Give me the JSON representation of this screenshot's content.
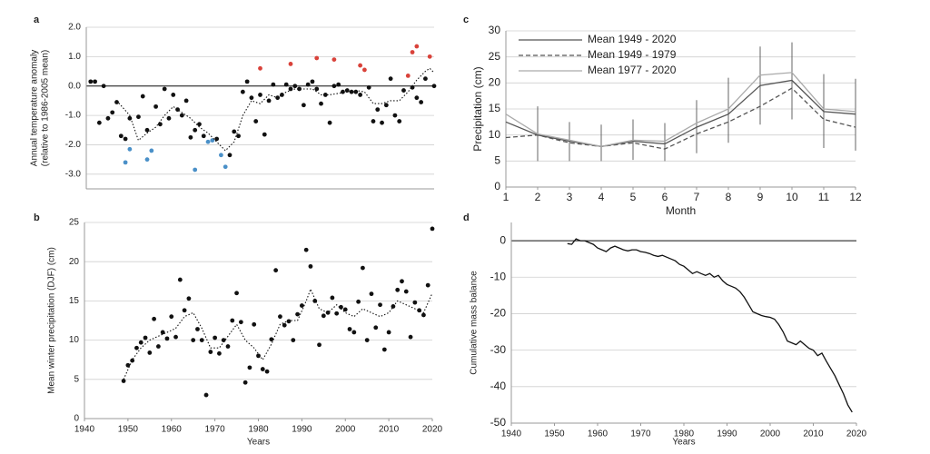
{
  "chart_data": [
    {
      "type": "scatter",
      "label": "a",
      "ylabel": [
        "Annual temperature anomaly",
        "(relative to 1986-2005 mean)"
      ],
      "xlim": [
        1940,
        2020
      ],
      "ylim": [
        -3.5,
        2.0
      ],
      "yticks": [
        {
          "value": 2,
          "label": "2.0"
        },
        {
          "value": 1,
          "label": "1.0"
        },
        {
          "value": 0,
          "label": "0.0"
        },
        {
          "value": -1,
          "label": "-1.0"
        },
        {
          "value": -2,
          "label": "-2.0"
        },
        {
          "value": -3,
          "label": "-3.0"
        }
      ],
      "grid": true,
      "zero_line": true,
      "series": [
        {
          "color": "#111111",
          "style": "dots",
          "x": [
            1941,
            1942,
            1943,
            1944,
            1945,
            1946,
            1947,
            1948,
            1949,
            1950,
            1952,
            1953,
            1954,
            1956,
            1957,
            1958,
            1959,
            1960,
            1961,
            1962,
            1963,
            1964,
            1965,
            1966,
            1967,
            1970,
            1973,
            1974,
            1975,
            1976,
            1977,
            1978,
            1979,
            1980,
            1981,
            1982,
            1983,
            1984,
            1985,
            1986,
            1987,
            1988,
            1989,
            1990,
            1991,
            1992,
            1993,
            1994,
            1995,
            1996,
            1997,
            1998,
            1999,
            2000,
            2001,
            2002,
            2003,
            2005,
            2006,
            2007,
            2008,
            2009,
            2010,
            2011,
            2012,
            2013,
            2015,
            2016,
            2017,
            2018,
            2020
          ],
          "values": [
            0.15,
            0.15,
            -1.25,
            0.0,
            -1.1,
            -0.9,
            -0.55,
            -1.7,
            -1.8,
            -1.1,
            -1.05,
            -0.35,
            -1.5,
            -0.7,
            -1.3,
            -0.1,
            -1.1,
            -0.3,
            -0.8,
            -1.0,
            -0.5,
            -1.75,
            -1.5,
            -1.3,
            -1.7,
            -1.8,
            -2.35,
            -1.55,
            -1.7,
            -0.2,
            0.15,
            -0.4,
            -1.2,
            -0.3,
            -1.65,
            -0.5,
            0.05,
            -0.4,
            -0.3,
            0.05,
            -0.1,
            0.0,
            -0.1,
            -0.65,
            0.05,
            0.15,
            -0.1,
            -0.6,
            -0.3,
            -1.25,
            0.0,
            0.05,
            -0.2,
            -0.15,
            -0.2,
            -0.2,
            -0.3,
            -0.05,
            -1.2,
            -0.8,
            -1.25,
            -0.65,
            0.25,
            -1.0,
            -1.2,
            -0.15,
            -0.05,
            -0.4,
            -0.55,
            0.25,
            0.0
          ]
        },
        {
          "color": "#4a90c8",
          "style": "dots",
          "x": [
            1949,
            1950,
            1954,
            1955,
            1965,
            1968,
            1969,
            1971,
            1972
          ],
          "values": [
            -2.6,
            -2.15,
            -2.5,
            -2.2,
            -2.85,
            -1.9,
            -1.85,
            -2.35,
            -2.75
          ]
        },
        {
          "color": "#d9423a",
          "style": "dots",
          "x": [
            1980,
            1987,
            1993,
            1997,
            2003,
            2004,
            2014,
            2015,
            2016,
            2019
          ],
          "values": [
            0.6,
            0.75,
            0.95,
            0.9,
            0.7,
            0.55,
            0.35,
            1.15,
            1.35,
            1.0
          ]
        },
        {
          "color": "#111111",
          "style": "dotted",
          "x": [
            1947,
            1950,
            1952,
            1954,
            1956,
            1958,
            1960,
            1962,
            1964,
            1966,
            1968,
            1970,
            1972,
            1974,
            1976,
            1978,
            1980,
            1982,
            1984,
            1986,
            1988,
            1990,
            1992,
            1994,
            1996,
            1998,
            2000,
            2002,
            2004,
            2006,
            2008,
            2010,
            2012,
            2014,
            2016,
            2018,
            2019,
            2020
          ],
          "values": [
            -0.5,
            -1.0,
            -1.85,
            -1.6,
            -1.4,
            -1.0,
            -0.7,
            -0.9,
            -1.1,
            -1.4,
            -1.6,
            -1.9,
            -2.2,
            -1.9,
            -1.0,
            -0.5,
            -0.6,
            -0.3,
            -0.4,
            -0.2,
            -0.1,
            -0.1,
            -0.1,
            -0.3,
            -0.3,
            -0.25,
            -0.2,
            -0.15,
            -0.2,
            -0.6,
            -0.6,
            -0.5,
            -0.5,
            -0.2,
            0.2,
            0.5,
            0.6,
            0.45
          ]
        }
      ]
    },
    {
      "type": "scatter",
      "label": "b",
      "xlabel": "Years",
      "ylabel": [
        "Mean winter precipitation (DJF) (cm)"
      ],
      "xlim": [
        1940,
        2020
      ],
      "ylim": [
        0,
        25
      ],
      "xticks": [
        1940,
        1950,
        1960,
        1970,
        1980,
        1990,
        2000,
        2010,
        2020
      ],
      "yticks": [
        0,
        5,
        10,
        15,
        20,
        25
      ],
      "grid": true,
      "series": [
        {
          "color": "#111111",
          "style": "dots",
          "x": [
            1949,
            1950,
            1951,
            1952,
            1953,
            1954,
            1955,
            1956,
            1957,
            1958,
            1959,
            1960,
            1961,
            1962,
            1963,
            1964,
            1965,
            1966,
            1967,
            1968,
            1969,
            1970,
            1971,
            1972,
            1973,
            1974,
            1975,
            1976,
            1977,
            1978,
            1979,
            1980,
            1981,
            1982,
            1983,
            1984,
            1985,
            1986,
            1987,
            1988,
            1989,
            1990,
            1991,
            1992,
            1993,
            1994,
            1995,
            1996,
            1997,
            1998,
            1999,
            2000,
            2001,
            2002,
            2003,
            2004,
            2005,
            2006,
            2007,
            2008,
            2009,
            2010,
            2011,
            2012,
            2013,
            2014,
            2015,
            2016,
            2017,
            2018,
            2019,
            2020
          ],
          "values": [
            4.8,
            6.8,
            7.4,
            9.0,
            9.7,
            10.3,
            8.4,
            12.7,
            9.2,
            11.0,
            10.2,
            13.0,
            10.4,
            17.7,
            13.8,
            15.3,
            10.0,
            11.4,
            10.0,
            3.0,
            8.5,
            10.3,
            8.3,
            10.0,
            9.2,
            12.5,
            16.0,
            12.3,
            4.6,
            6.5,
            12.0,
            8.0,
            6.3,
            6.0,
            10.1,
            18.9,
            13.0,
            11.9,
            12.4,
            10.0,
            13.3,
            14.4,
            21.5,
            19.4,
            15.0,
            9.4,
            13.1,
            13.5,
            15.4,
            13.4,
            14.2,
            13.9,
            11.4,
            11.0,
            14.9,
            19.2,
            10.0,
            15.9,
            11.6,
            14.5,
            8.8,
            11.0,
            14.3,
            16.4,
            17.5,
            16.2,
            10.4,
            14.8,
            13.8,
            13.2,
            17.0,
            24.2
          ]
        },
        {
          "color": "#111111",
          "style": "dotted",
          "x": [
            1949,
            1951,
            1953,
            1955,
            1957,
            1959,
            1961,
            1963,
            1965,
            1967,
            1969,
            1971,
            1973,
            1975,
            1977,
            1979,
            1981,
            1983,
            1985,
            1987,
            1989,
            1991,
            1992,
            1994,
            1996,
            1998,
            2000,
            2002,
            2004,
            2006,
            2008,
            2010,
            2012,
            2014,
            2016,
            2018,
            2020
          ],
          "values": [
            5.0,
            7.5,
            9.0,
            10.0,
            10.5,
            11.0,
            11.5,
            13.0,
            13.5,
            11.5,
            9.0,
            9.0,
            10.5,
            12.0,
            10.0,
            9.0,
            7.5,
            9.5,
            12.0,
            12.5,
            12.5,
            15.0,
            16.5,
            14.0,
            13.5,
            14.5,
            13.5,
            13.0,
            14.0,
            13.5,
            13.0,
            13.5,
            15.0,
            14.5,
            14.0,
            13.5,
            16.0
          ]
        }
      ]
    },
    {
      "type": "line",
      "label": "c",
      "xlabel": "Month",
      "ylabel": [
        "Precipitation (cm)"
      ],
      "xlim": [
        1,
        12
      ],
      "ylim": [
        0,
        30
      ],
      "xticks": [
        1,
        2,
        3,
        4,
        5,
        6,
        7,
        8,
        9,
        10,
        11,
        12
      ],
      "yticks": [
        0,
        5,
        10,
        15,
        20,
        25,
        30
      ],
      "grid": true,
      "legend": "upper left",
      "x": [
        1,
        2,
        3,
        4,
        5,
        6,
        7,
        8,
        9,
        10,
        11,
        12
      ],
      "series": [
        {
          "name": "Mean 1949 - 2020",
          "color": "#555555",
          "style": "solid",
          "values": [
            12.5,
            10.0,
            8.8,
            7.8,
            8.8,
            8.3,
            11.5,
            14.0,
            19.5,
            20.5,
            14.5,
            14.0
          ]
        },
        {
          "name": "Mean 1949 - 1979",
          "color": "#555555",
          "style": "dashed",
          "values": [
            9.5,
            10.0,
            8.5,
            7.8,
            8.5,
            7.3,
            10.2,
            12.5,
            15.5,
            19.0,
            13.0,
            11.5
          ]
        },
        {
          "name": "Mean 1977 - 2020",
          "color": "#aaaaaa",
          "style": "solid",
          "values": [
            14.0,
            10.2,
            9.0,
            7.8,
            9.0,
            8.8,
            12.3,
            15.0,
            21.5,
            22.0,
            15.0,
            14.5
          ]
        }
      ],
      "error_bars": {
        "color": "#555555",
        "low": [
          null,
          5.0,
          5.0,
          5.0,
          5.2,
          5.0,
          6.5,
          8.5,
          12.0,
          13.0,
          7.5,
          7.0
        ],
        "high": [
          null,
          15.5,
          12.5,
          12.0,
          13.0,
          12.3,
          16.7,
          21.0,
          27.0,
          27.8,
          21.7,
          20.8
        ]
      }
    },
    {
      "type": "line",
      "label": "d",
      "xlabel": "Years",
      "ylabel": [
        "Cumulative mass balance"
      ],
      "xlim": [
        1940,
        2020
      ],
      "ylim": [
        -50,
        5
      ],
      "xticks": [
        1940,
        1950,
        1960,
        1970,
        1980,
        1990,
        2000,
        2010,
        2020
      ],
      "yticks": [
        0,
        -10,
        -20,
        -30,
        -40,
        -50
      ],
      "grid": true,
      "zero_line": true,
      "series": [
        {
          "color": "#111111",
          "style": "solid",
          "x": [
            1953,
            1954,
            1955,
            1956,
            1957,
            1958,
            1959,
            1960,
            1961,
            1962,
            1963,
            1964,
            1965,
            1966,
            1967,
            1968,
            1969,
            1970,
            1971,
            1972,
            1973,
            1974,
            1975,
            1976,
            1977,
            1978,
            1979,
            1980,
            1981,
            1982,
            1983,
            1984,
            1985,
            1986,
            1987,
            1988,
            1989,
            1990,
            1991,
            1992,
            1993,
            1994,
            1995,
            1996,
            1997,
            1998,
            1999,
            2000,
            2001,
            2002,
            2003,
            2004,
            2005,
            2006,
            2007,
            2008,
            2009,
            2010,
            2011,
            2012,
            2013,
            2014,
            2015,
            2016,
            2017,
            2018,
            2019
          ],
          "values": [
            -0.8,
            -1.0,
            0.5,
            0.0,
            0.0,
            -0.5,
            -1.0,
            -2.0,
            -2.5,
            -3.0,
            -2.0,
            -1.5,
            -2.0,
            -2.5,
            -2.8,
            -2.5,
            -2.5,
            -3.0,
            -3.2,
            -3.5,
            -4.0,
            -4.3,
            -4.0,
            -4.5,
            -5.0,
            -5.5,
            -6.5,
            -7.0,
            -8.0,
            -9.0,
            -8.5,
            -9.0,
            -9.5,
            -9.0,
            -10.0,
            -9.5,
            -11.0,
            -12.0,
            -12.5,
            -13.0,
            -14.0,
            -15.5,
            -17.5,
            -19.5,
            -20.0,
            -20.5,
            -20.8,
            -21.0,
            -21.5,
            -23.0,
            -25.0,
            -27.5,
            -28.0,
            -28.5,
            -27.5,
            -28.5,
            -29.5,
            -30.0,
            -31.5,
            -30.8,
            -33.0,
            -35.0,
            -37.0,
            -39.5,
            -42.0,
            -45.0,
            -47.0
          ]
        }
      ]
    }
  ]
}
